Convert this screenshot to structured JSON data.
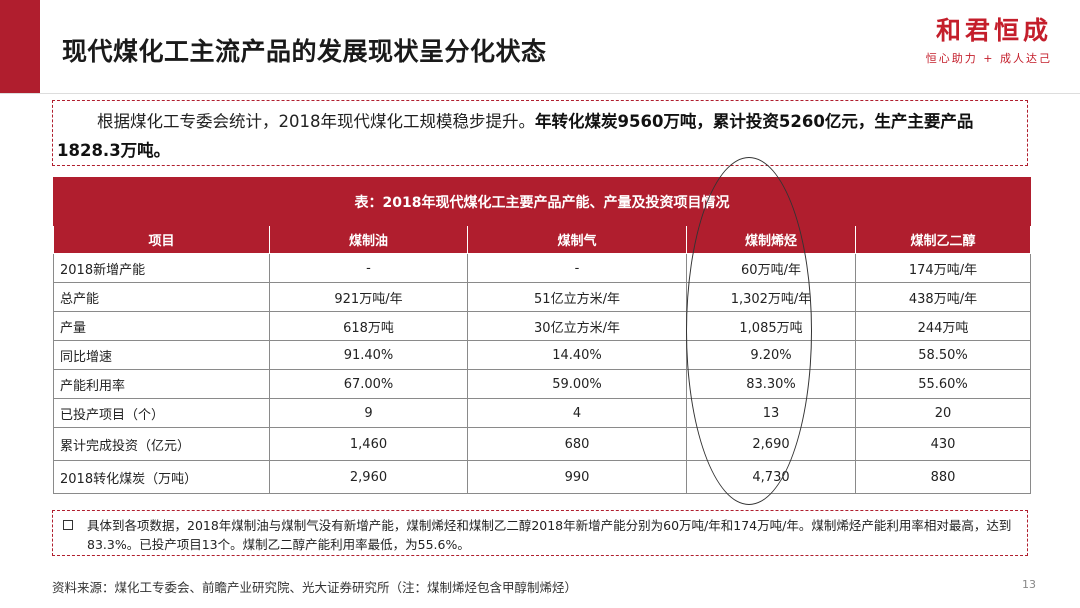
{
  "header": {
    "title": "现代煤化工主流产品的发展现状呈分化状态",
    "brand_name": "和君恒成",
    "brand_slogan": "恒心助力 + 成人达己"
  },
  "intro": {
    "plain": "根据煤化工专委会统计，2018年现代煤化工规模稳步提升。",
    "bold": "年转化煤炭9560万吨，累计投资5260亿元，生产主要产品1828.3万吨。"
  },
  "table": {
    "caption": "表：2018年现代煤化工主要产品产能、产量及投资项目情况",
    "headers": [
      "项目",
      "煤制油",
      "煤制气",
      "煤制烯烃",
      "煤制乙二醇"
    ],
    "rows": [
      [
        "2018新增产能",
        "-",
        "-",
        "60万吨/年",
        "174万吨/年"
      ],
      [
        "总产能",
        "921万吨/年",
        "51亿立方米/年",
        "1,302万吨/年",
        "438万吨/年"
      ],
      [
        "产量",
        "618万吨",
        "30亿立方米/年",
        "1,085万吨",
        "244万吨"
      ],
      [
        "同比增速",
        "91.40%",
        "14.40%",
        "9.20%",
        "58.50%"
      ],
      [
        "产能利用率",
        "67.00%",
        "59.00%",
        "83.30%",
        "55.60%"
      ],
      [
        "已投产项目（个）",
        "9",
        "4",
        "13",
        "20"
      ],
      [
        "累计完成投资（亿元）",
        "1,460",
        "680",
        "2,690",
        "430"
      ],
      [
        "2018转化煤炭（万吨）",
        "2,960",
        "990",
        "4,730",
        "880"
      ]
    ]
  },
  "note": {
    "text": "具体到各项数据，2018年煤制油与煤制气没有新增产能，煤制烯烃和煤制乙二醇2018年新增产能分别为60万吨/年和174万吨/年。煤制烯烃产能利用率相对最高，达到83.3%。已投产项目13个。煤制乙二醇产能利用率最低，为55.6%。"
  },
  "footer": {
    "source": "资料来源：煤化工专委会、前瞻产业研究院、光大证券研究所（注：煤制烯烃包含甲醇制烯烃）",
    "page_number": "13"
  }
}
